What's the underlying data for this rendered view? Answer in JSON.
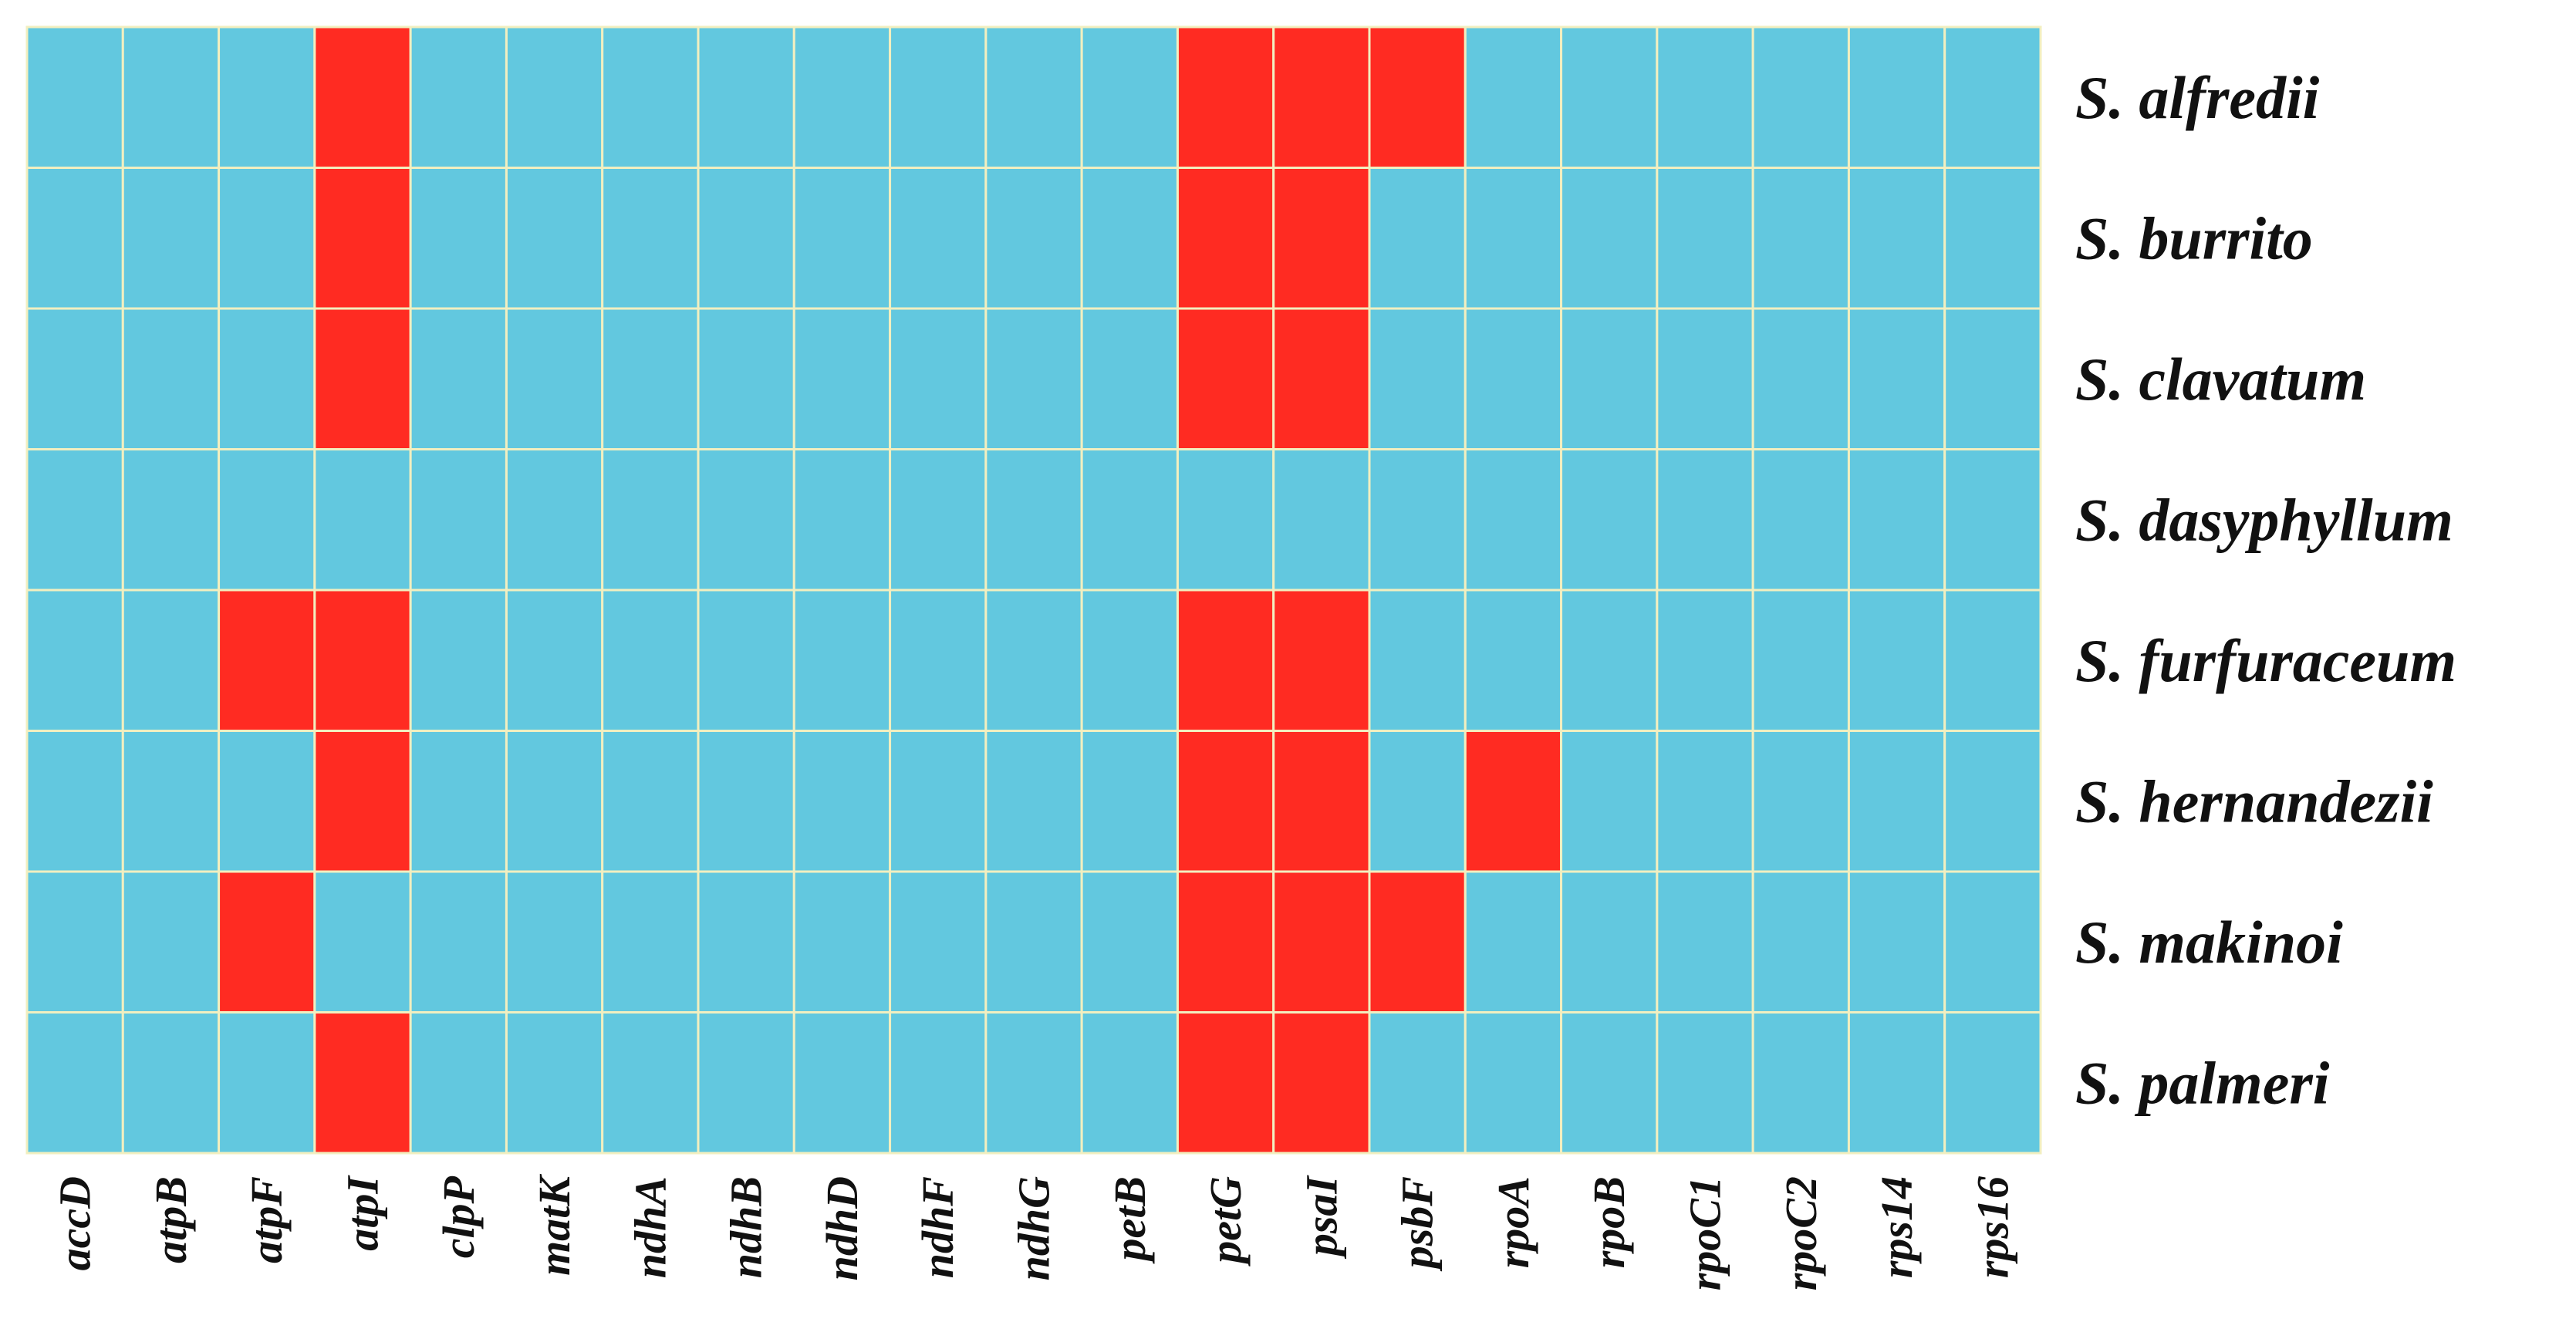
{
  "chart_data": {
    "type": "heatmap",
    "title": "",
    "xlabel": "",
    "ylabel": "",
    "columns": [
      "accD",
      "atpB",
      "atpF",
      "atpI",
      "clpP",
      "matK",
      "ndhA",
      "ndhB",
      "ndhD",
      "ndhF",
      "ndhG",
      "petB",
      "petG",
      "psaI",
      "psbF",
      "rpoA",
      "rpoB",
      "rpoC1",
      "rpoC2",
      "rps14",
      "rps16"
    ],
    "rows": [
      "S. alfredii",
      "S. burrito",
      "S. clavatum",
      "S. dasyphyllum",
      "S. furfuraceum",
      "S. hernandezii",
      "S. makinoi",
      "S. palmeri"
    ],
    "values": [
      [
        0,
        0,
        0,
        1,
        0,
        0,
        0,
        0,
        0,
        0,
        0,
        0,
        1,
        1,
        1,
        0,
        0,
        0,
        0,
        0,
        0
      ],
      [
        0,
        0,
        0,
        1,
        0,
        0,
        0,
        0,
        0,
        0,
        0,
        0,
        1,
        1,
        0,
        0,
        0,
        0,
        0,
        0,
        0
      ],
      [
        0,
        0,
        0,
        1,
        0,
        0,
        0,
        0,
        0,
        0,
        0,
        0,
        1,
        1,
        0,
        0,
        0,
        0,
        0,
        0,
        0
      ],
      [
        0,
        0,
        0,
        0,
        0,
        0,
        0,
        0,
        0,
        0,
        0,
        0,
        0,
        0,
        0,
        0,
        0,
        0,
        0,
        0,
        0
      ],
      [
        0,
        0,
        1,
        1,
        0,
        0,
        0,
        0,
        0,
        0,
        0,
        0,
        1,
        1,
        0,
        0,
        0,
        0,
        0,
        0,
        0
      ],
      [
        0,
        0,
        0,
        1,
        0,
        0,
        0,
        0,
        0,
        0,
        0,
        0,
        1,
        1,
        0,
        1,
        0,
        0,
        0,
        0,
        0
      ],
      [
        0,
        0,
        1,
        0,
        0,
        0,
        0,
        0,
        0,
        0,
        0,
        0,
        1,
        1,
        1,
        0,
        0,
        0,
        0,
        0,
        0
      ],
      [
        0,
        0,
        0,
        1,
        0,
        0,
        0,
        0,
        0,
        0,
        0,
        0,
        1,
        1,
        0,
        0,
        0,
        0,
        0,
        0,
        0
      ]
    ],
    "colors": {
      "0": "#62c8df",
      "1": "#ff2b22"
    },
    "grid_line_color": "#f2efc0",
    "legend": "none"
  }
}
